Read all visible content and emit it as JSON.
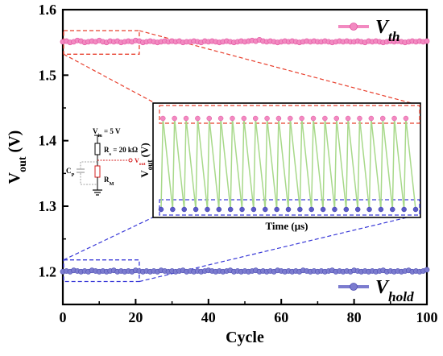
{
  "chart_data": {
    "type": "line",
    "xlabel": "Cycle",
    "xlim": [
      0,
      100
    ],
    "ylim": [
      1.15,
      1.6
    ],
    "x_ticks": [
      "0",
      "20",
      "40",
      "60",
      "80",
      "100"
    ],
    "y_ticks": [
      "1.2",
      "1.3",
      "1.4",
      "1.5",
      "1.6"
    ],
    "x_minor_step": 10,
    "y_minor_step": 0.05,
    "ylabel": {
      "main": "V",
      "sub": "out",
      "unit": "(V)"
    },
    "legend_position": "right, next to each series",
    "series": [
      {
        "key": "vth",
        "legend": {
          "main": "V",
          "sub": "th"
        },
        "color": "#f28ac1",
        "edge": "#e2509f",
        "x": [
          0,
          1,
          2,
          3,
          4,
          5,
          6,
          7,
          8,
          9,
          10,
          11,
          12,
          13,
          14,
          15,
          16,
          17,
          18,
          19,
          20,
          21,
          22,
          23,
          24,
          25,
          26,
          27,
          28,
          29,
          30,
          31,
          32,
          33,
          34,
          35,
          36,
          37,
          38,
          39,
          40,
          41,
          42,
          43,
          44,
          45,
          46,
          47,
          48,
          49,
          50,
          51,
          52,
          53,
          54,
          55,
          56,
          57,
          58,
          59,
          60,
          61,
          62,
          63,
          64,
          65,
          66,
          67,
          68,
          69,
          70,
          71,
          72,
          73,
          74,
          75,
          76,
          77,
          78,
          79,
          80,
          81,
          82,
          83,
          84,
          85,
          86,
          87,
          88,
          89,
          90,
          91,
          92,
          93,
          94,
          95,
          96,
          97,
          98,
          99,
          100
        ],
        "y": [
          1.551,
          1.552,
          1.55,
          1.551,
          1.553,
          1.552,
          1.55,
          1.551,
          1.552,
          1.551,
          1.553,
          1.551,
          1.55,
          1.552,
          1.551,
          1.552,
          1.55,
          1.551,
          1.552,
          1.551,
          1.553,
          1.552,
          1.55,
          1.551,
          1.552,
          1.551,
          1.55,
          1.551,
          1.552,
          1.551,
          1.552,
          1.551,
          1.552,
          1.55,
          1.551,
          1.551,
          1.552,
          1.551,
          1.55,
          1.552,
          1.551,
          1.552,
          1.551,
          1.55,
          1.551,
          1.552,
          1.551,
          1.55,
          1.551,
          1.552,
          1.551,
          1.552,
          1.553,
          1.552,
          1.554,
          1.552,
          1.551,
          1.552,
          1.551,
          1.55,
          1.551,
          1.552,
          1.551,
          1.552,
          1.551,
          1.55,
          1.551,
          1.552,
          1.551,
          1.552,
          1.551,
          1.551,
          1.552,
          1.551,
          1.55,
          1.551,
          1.552,
          1.551,
          1.552,
          1.551,
          1.551,
          1.552,
          1.551,
          1.55,
          1.552,
          1.551,
          1.552,
          1.551,
          1.55,
          1.551,
          1.552,
          1.551,
          1.552,
          1.551,
          1.55,
          1.551,
          1.552,
          1.551,
          1.552,
          1.551,
          1.552
        ]
      },
      {
        "key": "vhold",
        "legend": {
          "main": "V",
          "sub": "hold"
        },
        "color": "#7c7ccf",
        "edge": "#4d4db3",
        "x": [
          0,
          1,
          2,
          3,
          4,
          5,
          6,
          7,
          8,
          9,
          10,
          11,
          12,
          13,
          14,
          15,
          16,
          17,
          18,
          19,
          20,
          21,
          22,
          23,
          24,
          25,
          26,
          27,
          28,
          29,
          30,
          31,
          32,
          33,
          34,
          35,
          36,
          37,
          38,
          39,
          40,
          41,
          42,
          43,
          44,
          45,
          46,
          47,
          48,
          49,
          50,
          51,
          52,
          53,
          54,
          55,
          56,
          57,
          58,
          59,
          60,
          61,
          62,
          63,
          64,
          65,
          66,
          67,
          68,
          69,
          70,
          71,
          72,
          73,
          74,
          75,
          76,
          77,
          78,
          79,
          80,
          81,
          82,
          83,
          84,
          85,
          86,
          87,
          88,
          89,
          90,
          91,
          92,
          93,
          94,
          95,
          96,
          97,
          98,
          99,
          100
        ],
        "y": [
          1.2,
          1.201,
          1.2,
          1.202,
          1.201,
          1.2,
          1.201,
          1.2,
          1.202,
          1.201,
          1.2,
          1.201,
          1.2,
          1.201,
          1.202,
          1.2,
          1.201,
          1.2,
          1.201,
          1.2,
          1.202,
          1.201,
          1.2,
          1.201,
          1.2,
          1.201,
          1.2,
          1.202,
          1.201,
          1.2,
          1.201,
          1.2,
          1.201,
          1.202,
          1.2,
          1.201,
          1.2,
          1.201,
          1.2,
          1.201,
          1.202,
          1.201,
          1.2,
          1.201,
          1.2,
          1.201,
          1.202,
          1.2,
          1.201,
          1.2,
          1.201,
          1.2,
          1.201,
          1.202,
          1.2,
          1.201,
          1.2,
          1.201,
          1.2,
          1.202,
          1.201,
          1.2,
          1.201,
          1.2,
          1.201,
          1.2,
          1.202,
          1.201,
          1.2,
          1.201,
          1.2,
          1.201,
          1.2,
          1.201,
          1.202,
          1.2,
          1.201,
          1.2,
          1.201,
          1.2,
          1.202,
          1.201,
          1.2,
          1.201,
          1.2,
          1.201,
          1.2,
          1.201,
          1.202,
          1.2,
          1.201,
          1.2,
          1.201,
          1.2,
          1.201,
          1.202,
          1.2,
          1.201,
          1.2,
          1.201,
          1.203
        ]
      }
    ],
    "zoom_boxes": [
      {
        "series": "vth",
        "x_range": [
          0,
          21
        ],
        "y_range": [
          1.532,
          1.568
        ],
        "color": "#e8402e"
      },
      {
        "series": "vhold",
        "x_range": [
          0,
          21
        ],
        "y_range": [
          1.185,
          1.218
        ],
        "color": "#3a3ad8"
      }
    ],
    "inset": {
      "xlabel": {
        "main": "Time (",
        "mu": "μ",
        "rest": "s)"
      },
      "ylabel": {
        "main": "V",
        "sub": "out",
        "unit": "(V)"
      },
      "cycles": 22,
      "high_level": 1.0,
      "low_level": 0.0,
      "trace_color": "#a8d98a",
      "high_color": "#f28ac1",
      "low_color": "#5b5bc8",
      "high_box_color": "#e8402e",
      "low_box_color": "#3a3ad8"
    },
    "circuit": {
      "vin_label": {
        "main": "V",
        "sub": "in",
        "rest": "= 5 V"
      },
      "rs_label": {
        "main": "R",
        "sub": "s",
        "rest": "= 20 kΩ"
      },
      "cp_label": {
        "main": "C",
        "sub": "P"
      },
      "rm_label": {
        "main": "R",
        "sub": "M"
      },
      "vout_label": {
        "main": "V",
        "sub": "out"
      }
    }
  }
}
